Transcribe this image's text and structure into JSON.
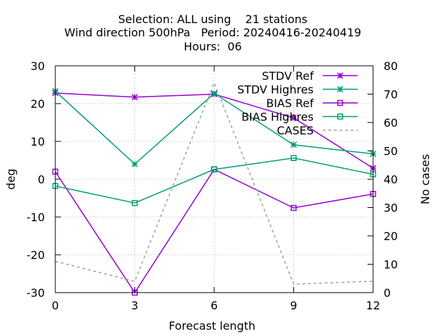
{
  "chart_data": {
    "type": "line",
    "title_lines": [
      "Selection: ALL using    21 stations",
      "Wind direction 500hPa   Period: 20240416-20240419",
      "Hours:  06"
    ],
    "xlabel": "Forecast length",
    "ylabel": "deg",
    "y2label": "No cases",
    "x": [
      0,
      3,
      6,
      9,
      12
    ],
    "xlim": [
      0,
      12
    ],
    "ylim": [
      -30,
      30
    ],
    "y2lim": [
      0,
      80
    ],
    "xticks": [
      "0",
      "3",
      "6",
      "9",
      "12"
    ],
    "yticks": [
      "30",
      "20",
      "10",
      "0",
      "-10",
      "-20",
      "-30"
    ],
    "y2ticks": [
      "80",
      "70",
      "60",
      "50",
      "40",
      "30",
      "20",
      "10",
      "0"
    ],
    "grid": true,
    "legend_position": "top-right",
    "series": [
      {
        "name": "STDV Ref",
        "values": [
          22.8,
          21.7,
          22.5,
          16.2,
          2.9
        ],
        "color": "#9400d3",
        "marker": "star",
        "dash": false,
        "axis": "y"
      },
      {
        "name": "STDV Highres",
        "values": [
          23.3,
          4.0,
          22.7,
          9.1,
          6.7
        ],
        "color": "#009e73",
        "marker": "star",
        "dash": false,
        "axis": "y"
      },
      {
        "name": "BIAS Ref",
        "values": [
          2.0,
          -30.0,
          2.6,
          -7.6,
          -3.9
        ],
        "color": "#9400d3",
        "marker": "square",
        "dash": false,
        "axis": "y"
      },
      {
        "name": "BIAS Highres",
        "values": [
          -1.8,
          -6.3,
          2.6,
          5.6,
          1.3
        ],
        "color": "#009e73",
        "marker": "square",
        "dash": false,
        "axis": "y"
      },
      {
        "name": "CASES",
        "values": [
          11,
          4,
          74,
          3,
          4
        ],
        "color": "#a0a0a0",
        "marker": "none",
        "dash": true,
        "axis": "y2"
      }
    ]
  }
}
